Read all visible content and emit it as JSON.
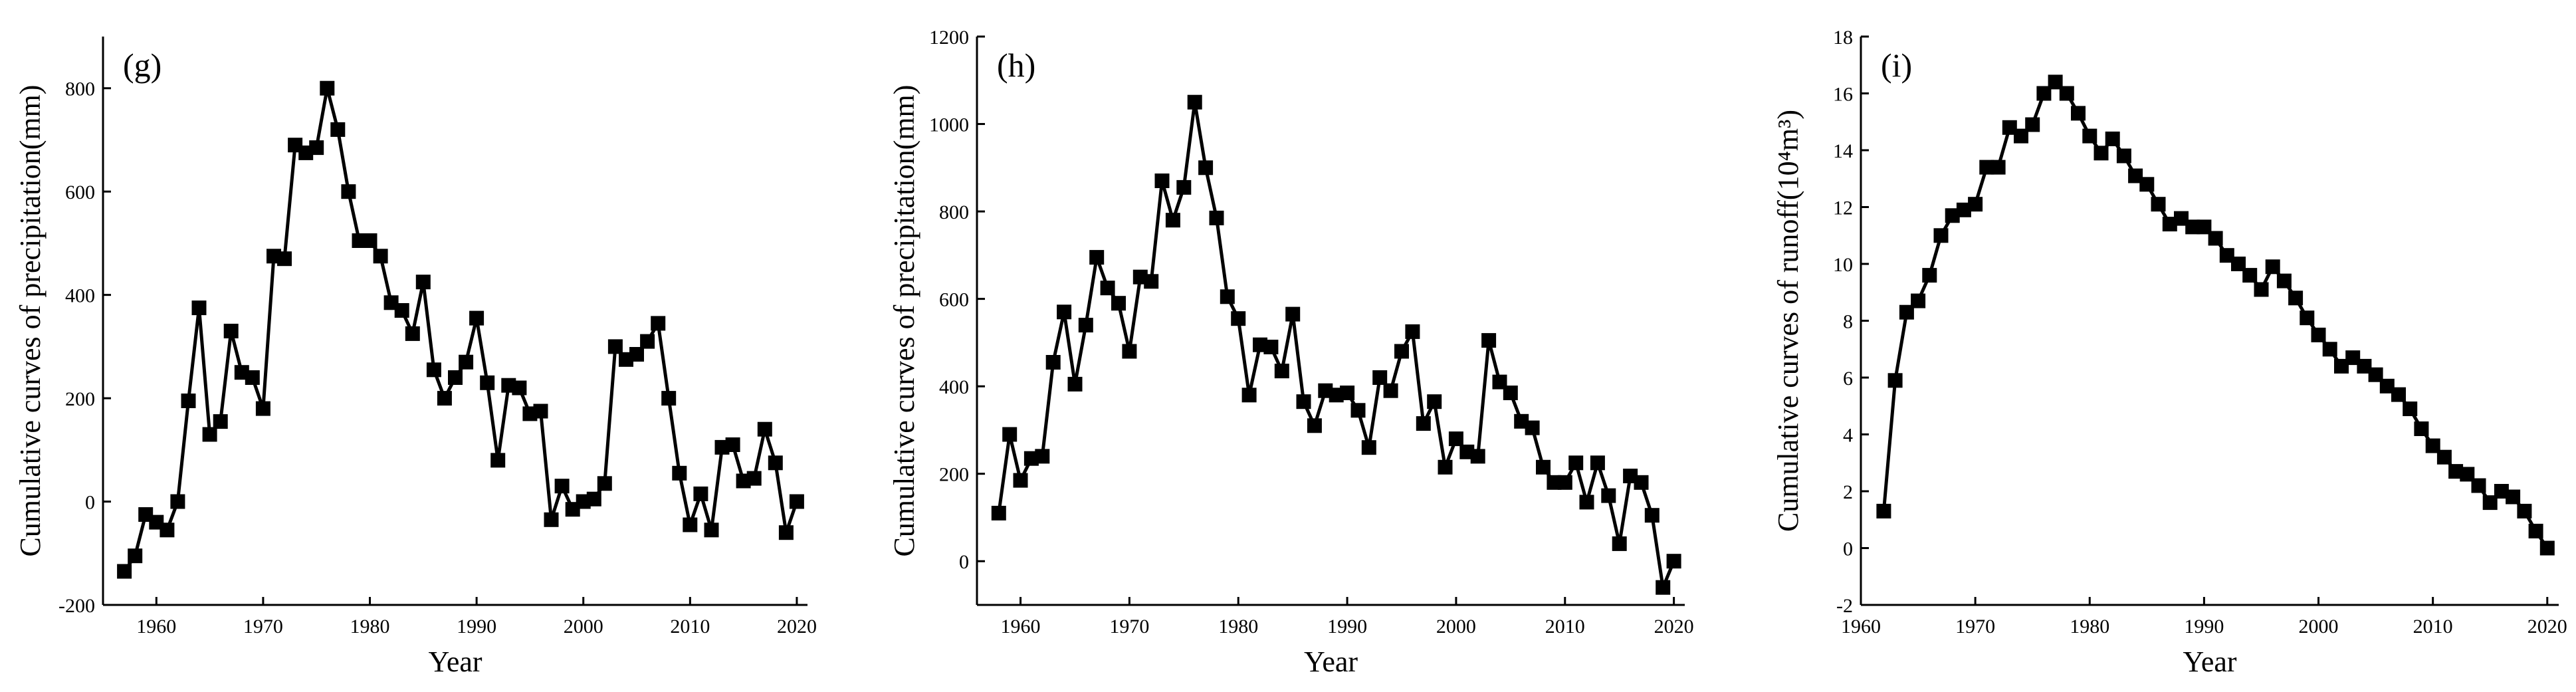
{
  "chart_data": [
    {
      "type": "line",
      "panel_label": "(g)",
      "xlabel": "Year",
      "ylabel": "Cumulative curves of precipitation(mm)",
      "xlim": [
        1955,
        2021
      ],
      "ylim": [
        -200,
        900
      ],
      "xticks": [
        1960,
        1970,
        1980,
        1990,
        2000,
        2010,
        2020
      ],
      "yticks": [
        -200,
        0,
        200,
        400,
        600,
        800
      ],
      "x": [
        1957,
        1958,
        1959,
        1960,
        1961,
        1962,
        1963,
        1964,
        1965,
        1966,
        1967,
        1968,
        1969,
        1970,
        1971,
        1972,
        1973,
        1974,
        1975,
        1976,
        1977,
        1978,
        1979,
        1980,
        1981,
        1982,
        1983,
        1984,
        1985,
        1986,
        1987,
        1988,
        1989,
        1990,
        1991,
        1992,
        1993,
        1994,
        1995,
        1996,
        1997,
        1998,
        1999,
        2000,
        2001,
        2002,
        2003,
        2004,
        2005,
        2006,
        2007,
        2008,
        2009,
        2010,
        2011,
        2012,
        2013,
        2014,
        2015,
        2016,
        2017,
        2018,
        2019,
        2020
      ],
      "series": [
        {
          "values": [
            -135,
            -105,
            -25,
            -40,
            -55,
            0,
            195,
            375,
            130,
            155,
            330,
            250,
            240,
            180,
            475,
            470,
            690,
            675,
            685,
            800,
            720,
            600,
            505,
            505,
            475,
            385,
            370,
            325,
            425,
            255,
            200,
            240,
            270,
            355,
            230,
            80,
            225,
            220,
            170,
            175,
            -35,
            30,
            -15,
            0,
            5,
            35,
            300,
            275,
            285,
            310,
            345,
            200,
            55,
            -45,
            15,
            -55,
            105,
            110,
            40,
            45,
            140,
            75,
            -60,
            0
          ]
        }
      ],
      "marker": "square",
      "color": "#000000",
      "grid": false
    },
    {
      "type": "line",
      "panel_label": "(h)",
      "xlabel": "Year",
      "ylabel": "Cumulative curves of precipitation(mm)",
      "xlim": [
        1956,
        2021
      ],
      "ylim": [
        -100,
        1200
      ],
      "xticks": [
        1960,
        1970,
        1980,
        1990,
        2000,
        2010,
        2020
      ],
      "yticks": [
        0,
        200,
        400,
        600,
        800,
        1000,
        1200
      ],
      "x": [
        1958,
        1959,
        1960,
        1961,
        1962,
        1963,
        1964,
        1965,
        1966,
        1967,
        1968,
        1969,
        1970,
        1971,
        1972,
        1973,
        1974,
        1975,
        1976,
        1977,
        1978,
        1979,
        1980,
        1981,
        1982,
        1983,
        1984,
        1985,
        1986,
        1987,
        1988,
        1989,
        1990,
        1991,
        1992,
        1993,
        1994,
        1995,
        1996,
        1997,
        1998,
        1999,
        2000,
        2001,
        2002,
        2003,
        2004,
        2005,
        2006,
        2007,
        2008,
        2009,
        2010,
        2011,
        2012,
        2013,
        2014,
        2015,
        2016,
        2017,
        2018,
        2019,
        2020
      ],
      "series": [
        {
          "values": [
            110,
            290,
            185,
            235,
            240,
            455,
            570,
            405,
            540,
            695,
            625,
            590,
            480,
            650,
            640,
            870,
            780,
            855,
            1050,
            900,
            785,
            605,
            555,
            380,
            495,
            490,
            435,
            565,
            365,
            310,
            390,
            380,
            385,
            345,
            260,
            420,
            390,
            480,
            525,
            315,
            365,
            215,
            280,
            250,
            240,
            505,
            410,
            385,
            320,
            305,
            215,
            180,
            180,
            225,
            135,
            225,
            150,
            40,
            195,
            180,
            105,
            -60,
            0
          ]
        }
      ],
      "marker": "square",
      "color": "#000000",
      "grid": false
    },
    {
      "type": "line",
      "panel_label": "(i)",
      "xlabel": "Year",
      "ylabel": "Cumulative curves of runoff(10⁴m³)",
      "xlim": [
        1960,
        2021
      ],
      "ylim": [
        -2,
        18
      ],
      "xticks": [
        1960,
        1970,
        1980,
        1990,
        2000,
        2010,
        2020
      ],
      "xtick_labels": [
        "1960",
        "1970",
        "1980",
        "1990",
        "2000",
        "2010",
        "2020"
      ],
      "yticks": [
        -2,
        0,
        2,
        4,
        6,
        8,
        10,
        12,
        14,
        16,
        18
      ],
      "x": [
        1962,
        1963,
        1964,
        1965,
        1966,
        1967,
        1968,
        1969,
        1970,
        1971,
        1972,
        1973,
        1974,
        1975,
        1976,
        1977,
        1978,
        1979,
        1980,
        1981,
        1982,
        1983,
        1984,
        1985,
        1986,
        1987,
        1988,
        1989,
        1990,
        1991,
        1992,
        1993,
        1994,
        1995,
        1996,
        1997,
        1998,
        1999,
        2000,
        2001,
        2002,
        2003,
        2004,
        2005,
        2006,
        2007,
        2008,
        2009,
        2010,
        2011,
        2012,
        2013,
        2014,
        2015,
        2016,
        2017,
        2018,
        2019,
        2020
      ],
      "series": [
        {
          "values": [
            1.3,
            5.9,
            8.3,
            8.7,
            9.6,
            11.0,
            11.7,
            11.9,
            12.1,
            13.4,
            13.4,
            14.8,
            14.5,
            14.9,
            16.0,
            16.4,
            16.0,
            15.3,
            14.5,
            13.9,
            14.4,
            13.8,
            13.1,
            12.8,
            12.1,
            11.4,
            11.6,
            11.3,
            11.3,
            10.9,
            10.3,
            10.0,
            9.6,
            9.1,
            9.9,
            9.4,
            8.8,
            8.1,
            7.5,
            7.0,
            6.4,
            6.7,
            6.4,
            6.1,
            5.7,
            5.4,
            4.9,
            4.2,
            3.6,
            3.2,
            2.7,
            2.6,
            2.2,
            1.6,
            2.0,
            1.8,
            1.3,
            0.6,
            0.0
          ]
        }
      ],
      "marker": "square",
      "color": "#000000",
      "grid": false
    }
  ]
}
